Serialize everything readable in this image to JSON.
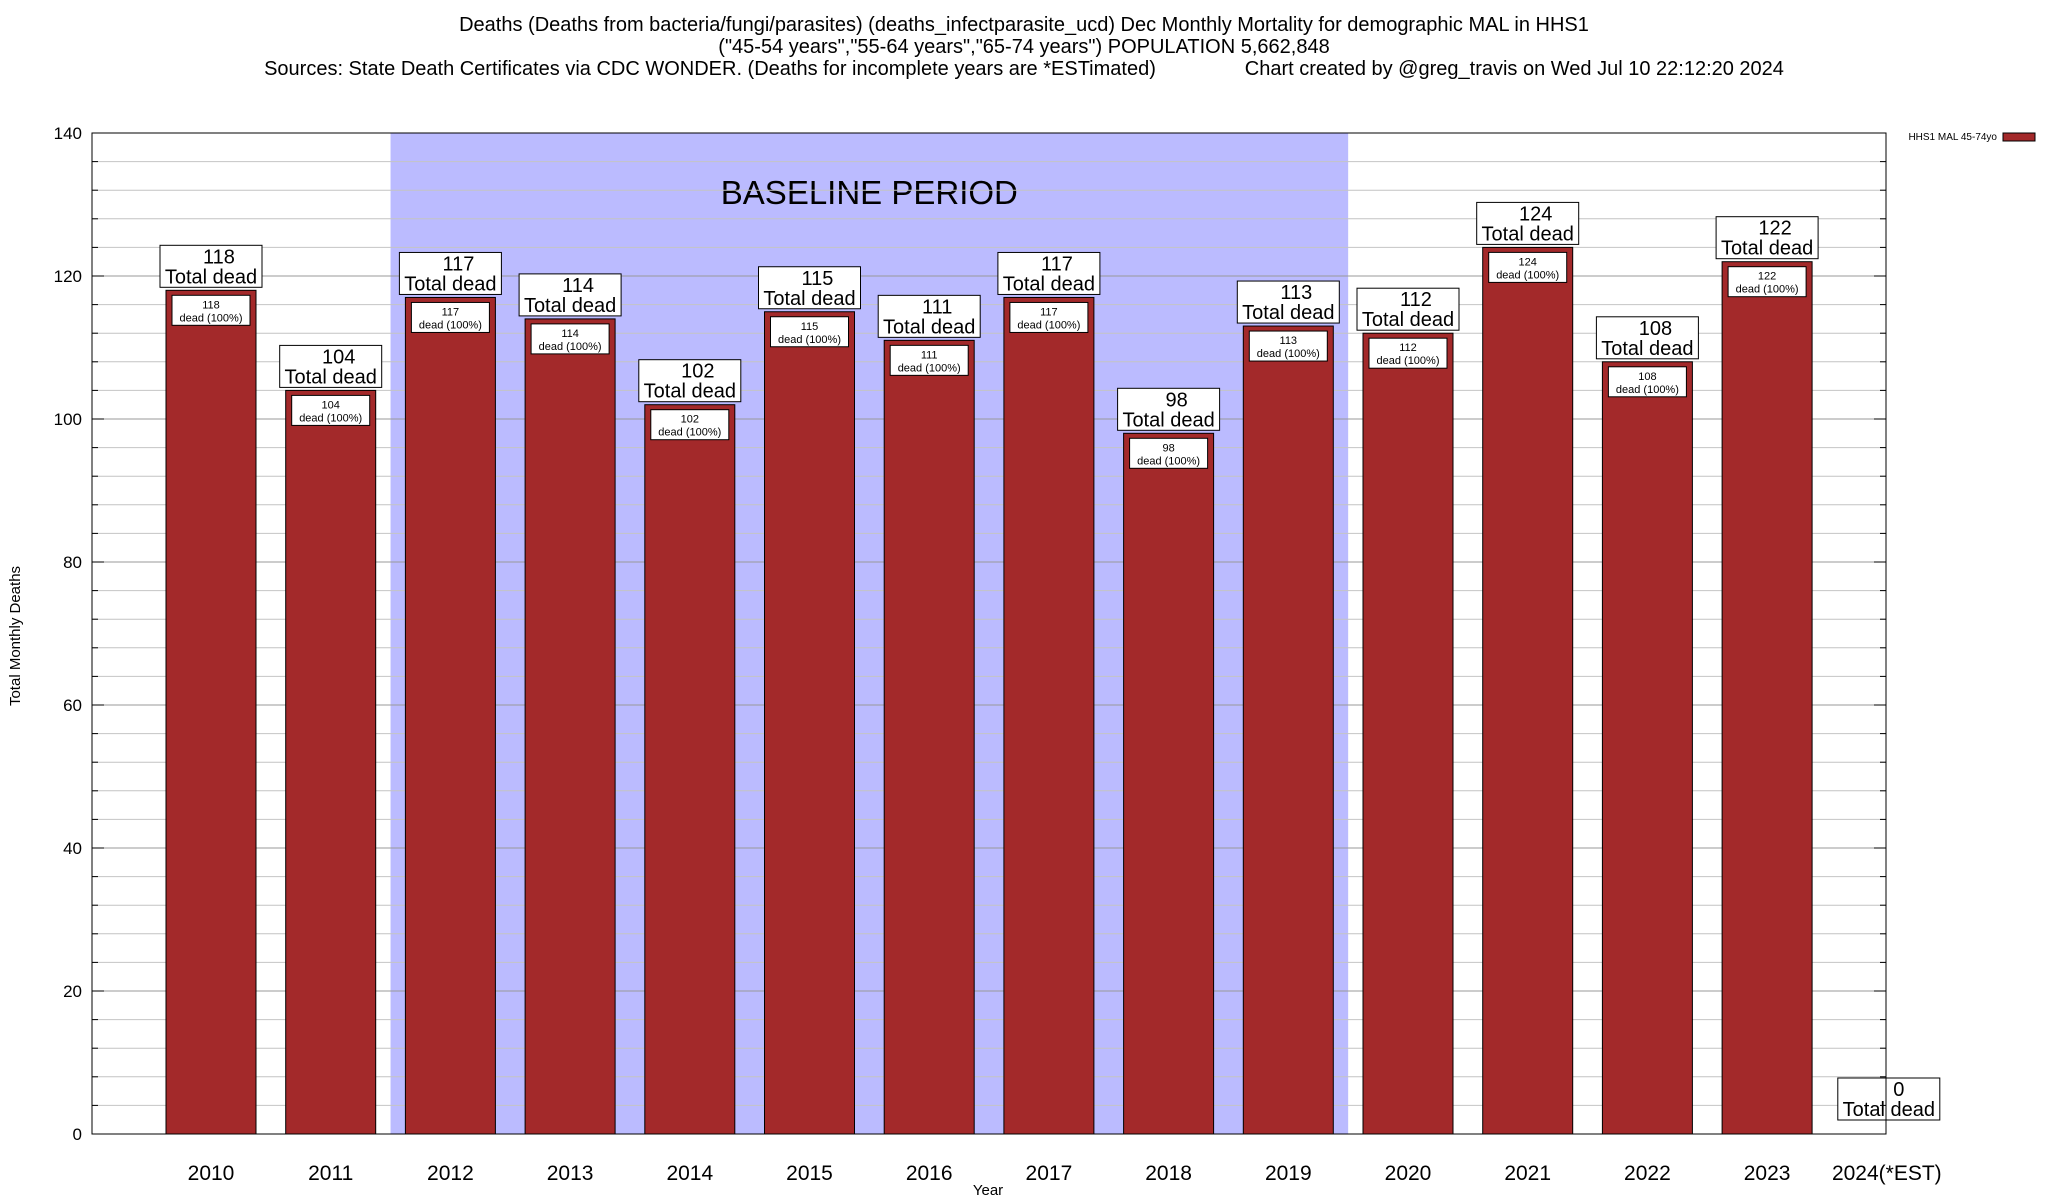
{
  "title_lines": [
    "Deaths (Deaths from bacteria/fungi/parasites) (deaths_infectparasite_ucd) Dec Monthly Mortality for demographic MAL in HHS1",
    "(\"45-54 years\",\"55-64 years\",\"65-74 years\") POPULATION 5,662,848",
    "Sources: State Death Certificates via CDC WONDER. (Deaths for incomplete years are *ESTimated)                Chart created by @greg_travis on Wed Jul 10 22:12:20 2024"
  ],
  "chart_data": {
    "type": "bar",
    "categories": [
      "2010",
      "2011",
      "2012",
      "2013",
      "2014",
      "2015",
      "2016",
      "2017",
      "2018",
      "2019",
      "2020",
      "2021",
      "2022",
      "2023",
      "2024(*EST)"
    ],
    "values": [
      118,
      104,
      117,
      114,
      102,
      115,
      111,
      117,
      98,
      113,
      112,
      124,
      108,
      122,
      0
    ],
    "series": [
      {
        "name": "HHS1 MAL 45-74yo",
        "values": [
          118,
          104,
          117,
          114,
          102,
          115,
          111,
          117,
          98,
          113,
          112,
          124,
          108,
          122,
          0
        ]
      }
    ],
    "top_label_suffix": "Total dead",
    "inner_label_suffix": "dead (100%)",
    "xlabel": "Year",
    "ylabel": "Total Monthly Deaths",
    "ylim": [
      0,
      140
    ],
    "yticks": [
      0,
      20,
      40,
      60,
      80,
      100,
      120,
      140
    ],
    "shaded_region": {
      "label": "BASELINE PERIOD",
      "from_category": "2012",
      "to_category": "2019",
      "color": "#bbbbff"
    },
    "bar_color": "#a3292a",
    "grid": true,
    "legend_position": "top-right"
  }
}
